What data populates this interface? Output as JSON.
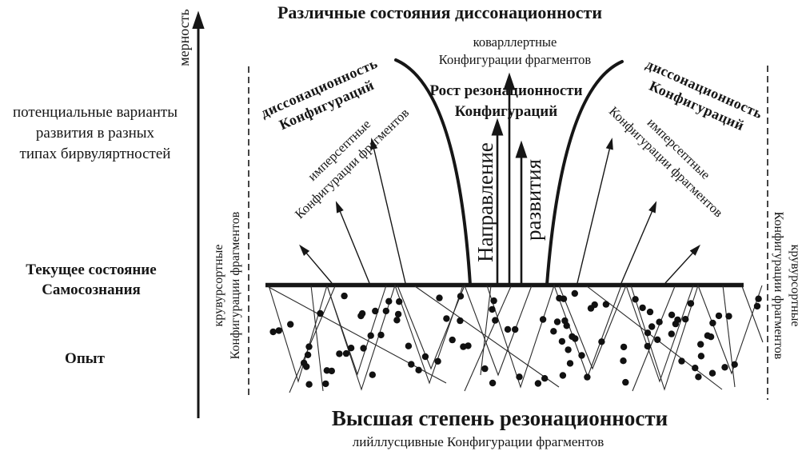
{
  "title": "Различные состояния диссонационности",
  "axis": {
    "label": "мерность"
  },
  "left_panel": {
    "potential": [
      "потенциальные варианты",
      "развития в разных",
      "типах бирвуляртностей"
    ],
    "current_state": [
      "Текущее состояние",
      "Самосознания"
    ],
    "experience": "Опыт"
  },
  "boundaries": {
    "left": [
      "крувурсортные",
      "Конфигурации фрагментов"
    ],
    "right": [
      "крувурсортные",
      "Конфигурации фрагментов"
    ]
  },
  "center_top": [
    "коварллертные",
    "Конфигурации фрагментов"
  ],
  "growth": [
    "Рост резонационности",
    "Конфигураций"
  ],
  "direction": {
    "word1": "Направление",
    "word2": "развития"
  },
  "diagonals": {
    "left_bold": [
      "диссонационность",
      "Конфигураций"
    ],
    "left_regular": [
      "имперсептные",
      "Конфигурации фрагментов"
    ],
    "right_bold": [
      "диссонационность",
      "Конфигураций"
    ],
    "right_regular": [
      "имперсептные",
      "Конфигурации фрагментов"
    ]
  },
  "bottom": {
    "title": "Высшая степень резонационности",
    "subtitle": "лийллусцивные Конфигурации фрагментов"
  },
  "colors": {
    "ink": "#161616",
    "background": "#ffffff"
  }
}
